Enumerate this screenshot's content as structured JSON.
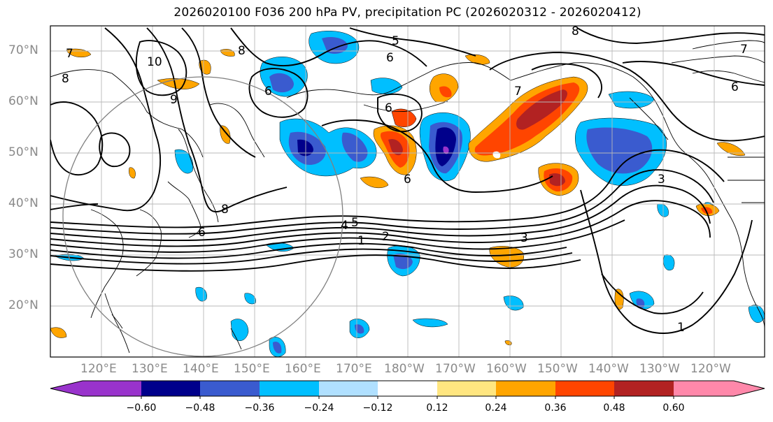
{
  "title": "2026020100 F036 200 hPa PV, precipitation PC (2026020312 - 2026020412)",
  "lat_labels": [
    "70°N",
    "60°N",
    "50°N",
    "40°N",
    "30°N",
    "20°N"
  ],
  "lon_labels": [
    "120°E",
    "130°E",
    "140°E",
    "150°E",
    "160°E",
    "170°E",
    "180°W",
    "170°W",
    "160°W",
    "150°W",
    "140°W",
    "130°W",
    "120°W"
  ],
  "colorbar": {
    "ticks": [
      "−0.60",
      "−0.48",
      "−0.36",
      "−0.24",
      "−0.12",
      "0.12",
      "0.24",
      "0.36",
      "0.48",
      "0.60"
    ],
    "colors": [
      "#9933cc",
      "#00008b",
      "#3a5bcf",
      "#00bfff",
      "#b0e0ff",
      "#ffffff",
      "#ffe680",
      "#ffa500",
      "#ff4500",
      "#b22222",
      "#ff88aa"
    ]
  },
  "contour_labels": [
    "10",
    "9",
    "8",
    "8",
    "8",
    "8",
    "7",
    "7",
    "6",
    "6",
    "6",
    "6",
    "6",
    "5",
    "5",
    "4",
    "3",
    "3",
    "2",
    "1",
    "1",
    "6",
    "7"
  ],
  "colors": {
    "neg_strong": "#00008b",
    "neg": "#3a5bcf",
    "neg_light": "#00bfff",
    "pos_light": "#ffa500",
    "pos": "#ff4500",
    "pos_strong": "#b22222"
  }
}
